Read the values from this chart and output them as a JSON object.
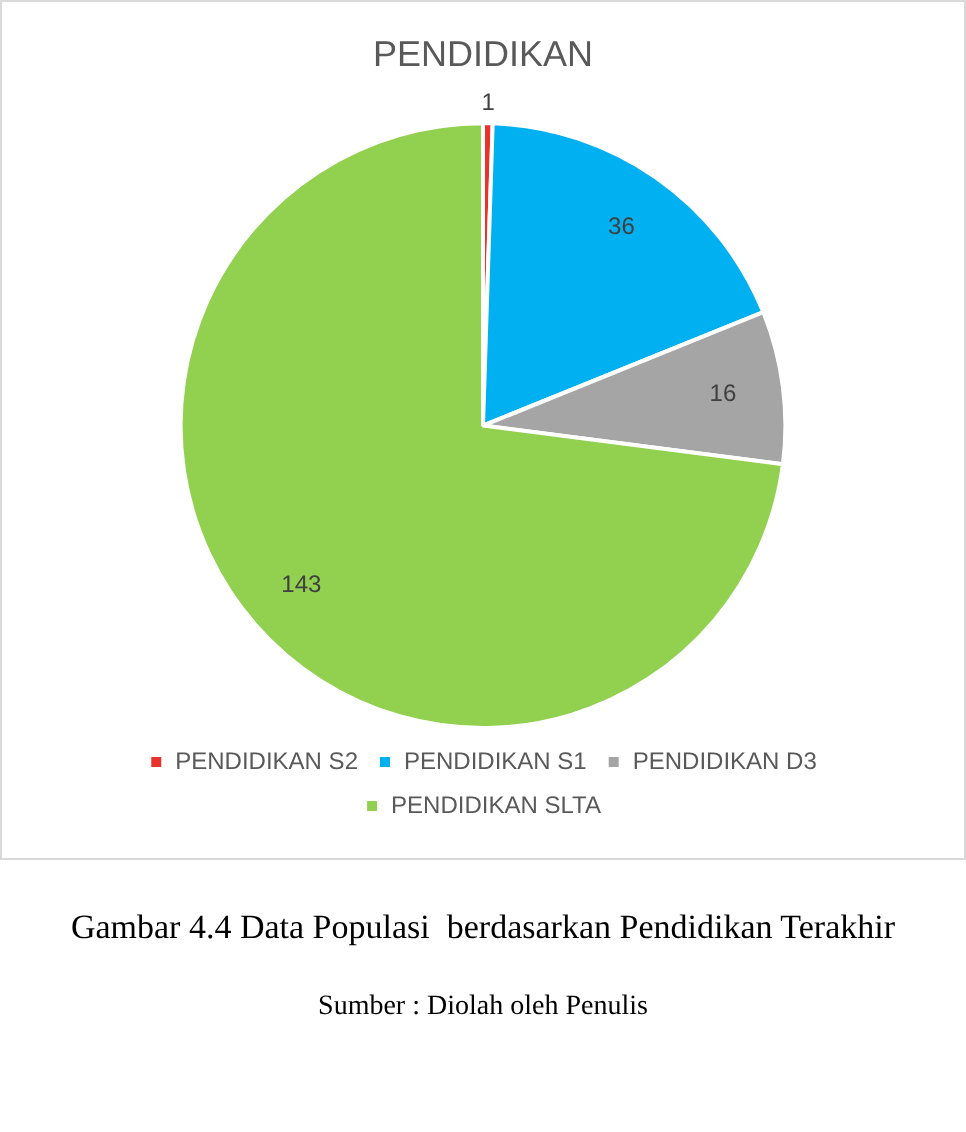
{
  "chart_data": {
    "type": "pie",
    "title": "PENDIDIKAN",
    "categories": [
      "PENDIDIKAN S2",
      "PENDIDIKAN S1",
      "PENDIDIKAN D3",
      "PENDIDIKAN SLTA"
    ],
    "values": [
      1,
      36,
      16,
      143
    ],
    "colors": [
      "#e8322b",
      "#00b0f0",
      "#a5a5a5",
      "#92d050"
    ],
    "data_labels": true,
    "legend": "bottom",
    "annotations": [
      "Gambar 4.4 Data Populasi  berdasarkan Pendidikan Terakhir",
      "Sumber : Diolah oleh Penulis"
    ]
  }
}
